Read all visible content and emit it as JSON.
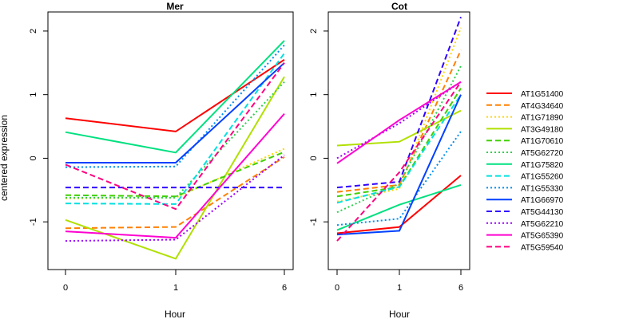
{
  "chart_data": {
    "type": "line",
    "ylabel": "centered expression",
    "xlabel": "Hour",
    "x": [
      "0",
      "1",
      "6"
    ],
    "ylim": [
      -1.75,
      2.3
    ],
    "yticks": [
      -1,
      0,
      1,
      2
    ],
    "legend_placement": "right",
    "series": [
      {
        "name": "AT1G51400",
        "color": "#ff0000",
        "dash": "solid"
      },
      {
        "name": "AT4G34640",
        "color": "#ff8000",
        "dash": "dashed"
      },
      {
        "name": "AT1G71890",
        "color": "#ffd700",
        "dash": "dotted"
      },
      {
        "name": "AT3G49180",
        "color": "#b0e000",
        "dash": "solid"
      },
      {
        "name": "AT1G70610",
        "color": "#40d000",
        "dash": "dashed"
      },
      {
        "name": "AT5G62720",
        "color": "#30d050",
        "dash": "dotted"
      },
      {
        "name": "AT1G75820",
        "color": "#00e080",
        "dash": "solid"
      },
      {
        "name": "AT1G55260",
        "color": "#00e0e0",
        "dash": "dashed"
      },
      {
        "name": "AT1G55330",
        "color": "#0090f0",
        "dash": "dotted"
      },
      {
        "name": "AT1G66970",
        "color": "#0040ff",
        "dash": "solid"
      },
      {
        "name": "AT5G44130",
        "color": "#3000ff",
        "dash": "dashed"
      },
      {
        "name": "AT5G62210",
        "color": "#a000ff",
        "dash": "dotted"
      },
      {
        "name": "AT5G65390",
        "color": "#ff00d0",
        "dash": "solid"
      },
      {
        "name": "AT5G59540",
        "color": "#ff0080",
        "dash": "dashed"
      }
    ],
    "panels": [
      {
        "title": "Mer",
        "values": [
          [
            0.63,
            0.42,
            1.55
          ],
          [
            -1.1,
            -1.08,
            0.02
          ],
          [
            -0.63,
            -0.62,
            0.15
          ],
          [
            -0.97,
            -1.58,
            1.28
          ],
          [
            -0.58,
            -0.6,
            0.1
          ],
          [
            -0.62,
            -0.62,
            1.2
          ],
          [
            0.41,
            0.09,
            1.85
          ],
          [
            -0.71,
            -0.72,
            1.65
          ],
          [
            -0.14,
            -0.13,
            1.78
          ],
          [
            -0.07,
            -0.07,
            1.5
          ],
          [
            -0.46,
            -0.46,
            -0.46
          ],
          [
            -1.3,
            -1.28,
            0.05
          ],
          [
            -1.15,
            -1.25,
            0.7
          ],
          [
            -0.1,
            -0.8,
            1.5
          ]
        ]
      },
      {
        "title": "Cot",
        "values": [
          [
            -1.18,
            -1.08,
            -0.27
          ],
          [
            -0.53,
            -0.42,
            1.7
          ],
          [
            -0.68,
            -0.48,
            2.05
          ],
          [
            0.2,
            0.26,
            0.75
          ],
          [
            -0.6,
            -0.45,
            1.1
          ],
          [
            -0.85,
            -0.4,
            1.45
          ],
          [
            -1.13,
            -0.73,
            -0.42
          ],
          [
            -0.7,
            -0.45,
            1.0
          ],
          [
            -1.05,
            -0.95,
            0.42
          ],
          [
            -1.2,
            -1.14,
            1.0
          ],
          [
            -0.46,
            -0.37,
            2.22
          ],
          [
            0.0,
            0.55,
            1.2
          ],
          [
            -0.08,
            0.6,
            1.2
          ],
          [
            -1.3,
            -0.22,
            1.2
          ]
        ]
      }
    ]
  }
}
